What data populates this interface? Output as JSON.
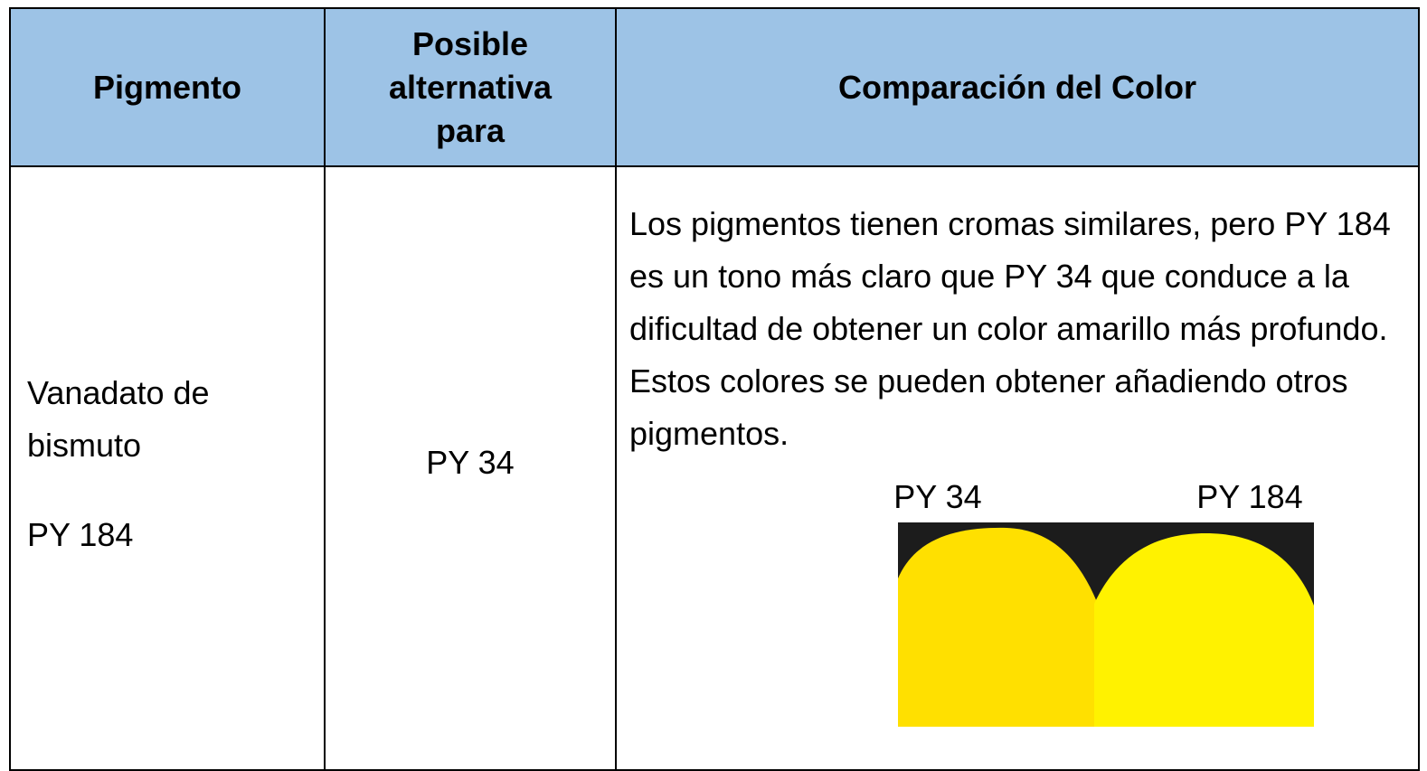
{
  "table": {
    "header": [
      "Pigmento",
      "Posible alternativa para",
      "Comparación del Color"
    ],
    "rows": [
      {
        "pigment_name": "Vanadato de bismuto",
        "pigment_code": "PY 184",
        "alternative": "PY 34",
        "comparison": "Los pigmentos tienen cromas similares, pero PY 184 es un tono más claro que PY 34 que conduce a la dificultad de obtener un color amarillo más profundo. Estos colores se pueden obtener añadiendo otros pigmentos.",
        "swatch_labels": [
          "PY 34",
          "PY 184"
        ]
      }
    ]
  }
}
